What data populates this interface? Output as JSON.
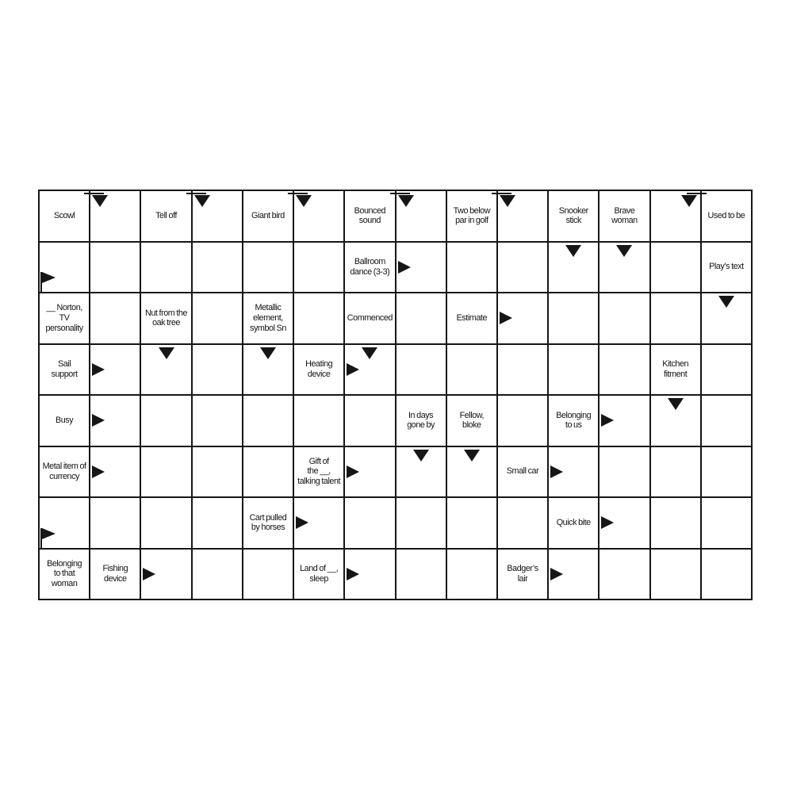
{
  "page": {
    "background": "#ffffff"
  },
  "puzzle": {
    "type": "arrowword-crossword",
    "grid": {
      "rows": 8,
      "cols": 14,
      "line_color": "#161616",
      "cell_color": "#ffffff"
    },
    "clues": [
      {
        "row": 1,
        "col": 1,
        "text": "Scowl"
      },
      {
        "row": 1,
        "col": 3,
        "text": "Tell off"
      },
      {
        "row": 1,
        "col": 5,
        "text": "Giant bird"
      },
      {
        "row": 1,
        "col": 7,
        "text": "Bounced\nsound"
      },
      {
        "row": 1,
        "col": 9,
        "text": "Two below\npar in golf"
      },
      {
        "row": 1,
        "col": 11,
        "text": "Snooker\nstick"
      },
      {
        "row": 1,
        "col": 12,
        "text": "Brave\nwoman"
      },
      {
        "row": 1,
        "col": 14,
        "text": "Used to be"
      },
      {
        "row": 2,
        "col": 7,
        "text": "Ballroom\ndance (3-3)"
      },
      {
        "row": 2,
        "col": 14,
        "text": "Play’s text"
      },
      {
        "row": 3,
        "col": 1,
        "text": "__ Norton,\nTV\npersonality"
      },
      {
        "row": 3,
        "col": 3,
        "text": "Nut from the\noak tree"
      },
      {
        "row": 3,
        "col": 5,
        "text": "Metallic\nelement,\nsymbol Sn"
      },
      {
        "row": 3,
        "col": 7,
        "text": "Commenced"
      },
      {
        "row": 3,
        "col": 9,
        "text": "Estimate"
      },
      {
        "row": 4,
        "col": 1,
        "text": "Sail\nsupport"
      },
      {
        "row": 4,
        "col": 6,
        "text": "Heating\ndevice"
      },
      {
        "row": 4,
        "col": 13,
        "text": "Kitchen\nfitment"
      },
      {
        "row": 5,
        "col": 1,
        "text": "Busy"
      },
      {
        "row": 5,
        "col": 8,
        "text": "In days\ngone by"
      },
      {
        "row": 5,
        "col": 9,
        "text": "Fellow,\nbloke"
      },
      {
        "row": 5,
        "col": 11,
        "text": "Belonging\nto us"
      },
      {
        "row": 6,
        "col": 1,
        "text": "Metal item of\ncurrency"
      },
      {
        "row": 6,
        "col": 6,
        "text": "Gift of\nthe __,\ntalking talent"
      },
      {
        "row": 6,
        "col": 10,
        "text": "Small car"
      },
      {
        "row": 7,
        "col": 5,
        "text": "Cart pulled\nby horses"
      },
      {
        "row": 7,
        "col": 11,
        "text": "Quick bite"
      },
      {
        "row": 8,
        "col": 1,
        "text": "Belonging\nto that\nwoman"
      },
      {
        "row": 8,
        "col": 2,
        "text": "Fishing\ndevice"
      },
      {
        "row": 8,
        "col": 6,
        "text": "Land of __,\nsleep"
      },
      {
        "row": 8,
        "col": 10,
        "text": "Badger’s\nlair"
      }
    ],
    "arrows": [
      {
        "row": 1,
        "col": 2,
        "type": "down-bend-left"
      },
      {
        "row": 1,
        "col": 4,
        "type": "down-bend-left"
      },
      {
        "row": 1,
        "col": 6,
        "type": "down-bend-left"
      },
      {
        "row": 1,
        "col": 8,
        "type": "down-bend-left"
      },
      {
        "row": 1,
        "col": 10,
        "type": "down-bend-left"
      },
      {
        "row": 1,
        "col": 13,
        "type": "down-bend-right"
      },
      {
        "row": 2,
        "col": 1,
        "type": "right-flag"
      },
      {
        "row": 2,
        "col": 8,
        "type": "right"
      },
      {
        "row": 2,
        "col": 11,
        "type": "down"
      },
      {
        "row": 2,
        "col": 12,
        "type": "down"
      },
      {
        "row": 3,
        "col": 10,
        "type": "right"
      },
      {
        "row": 3,
        "col": 14,
        "type": "down"
      },
      {
        "row": 4,
        "col": 2,
        "type": "right"
      },
      {
        "row": 4,
        "col": 3,
        "type": "down"
      },
      {
        "row": 4,
        "col": 5,
        "type": "down"
      },
      {
        "row": 4,
        "col": 7,
        "type": "down"
      },
      {
        "row": 4,
        "col": 7,
        "type": "right"
      },
      {
        "row": 5,
        "col": 2,
        "type": "right"
      },
      {
        "row": 5,
        "col": 12,
        "type": "right"
      },
      {
        "row": 5,
        "col": 13,
        "type": "down"
      },
      {
        "row": 6,
        "col": 2,
        "type": "right"
      },
      {
        "row": 6,
        "col": 7,
        "type": "right"
      },
      {
        "row": 6,
        "col": 8,
        "type": "down"
      },
      {
        "row": 6,
        "col": 9,
        "type": "down"
      },
      {
        "row": 6,
        "col": 11,
        "type": "right"
      },
      {
        "row": 7,
        "col": 1,
        "type": "right-flag"
      },
      {
        "row": 7,
        "col": 6,
        "type": "right"
      },
      {
        "row": 7,
        "col": 12,
        "type": "right"
      },
      {
        "row": 8,
        "col": 3,
        "type": "right"
      },
      {
        "row": 8,
        "col": 7,
        "type": "right"
      },
      {
        "row": 8,
        "col": 11,
        "type": "right"
      }
    ]
  }
}
